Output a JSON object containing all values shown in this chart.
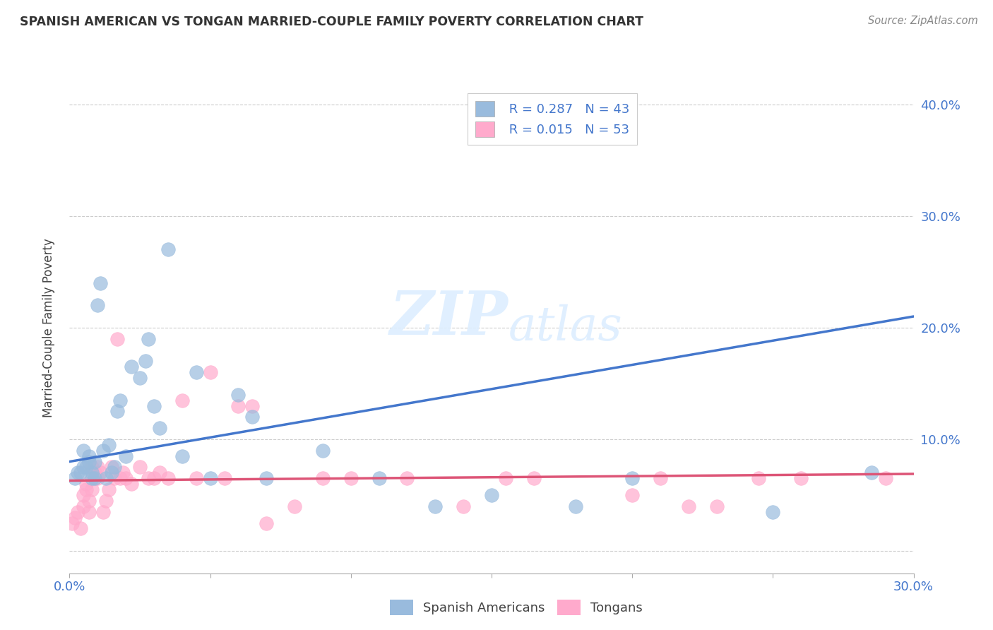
{
  "title": "SPANISH AMERICAN VS TONGAN MARRIED-COUPLE FAMILY POVERTY CORRELATION CHART",
  "source": "Source: ZipAtlas.com",
  "ylabel": "Married-Couple Family Poverty",
  "xlim": [
    0.0,
    0.3
  ],
  "ylim": [
    -0.02,
    0.42
  ],
  "watermark_zip": "ZIP",
  "watermark_atlas": "atlas",
  "legend_labels": [
    "Spanish Americans",
    "Tongans"
  ],
  "legend_R": [
    "R = 0.287",
    "R = 0.015"
  ],
  "legend_N": [
    "N = 43",
    "N = 53"
  ],
  "blue_color": "#99BBDD",
  "pink_color": "#FFAACC",
  "blue_line_color": "#4477CC",
  "pink_line_color": "#DD5577",
  "blue_scatter_x": [
    0.002,
    0.003,
    0.004,
    0.005,
    0.005,
    0.006,
    0.007,
    0.007,
    0.008,
    0.008,
    0.009,
    0.009,
    0.01,
    0.011,
    0.012,
    0.013,
    0.014,
    0.015,
    0.016,
    0.017,
    0.018,
    0.02,
    0.022,
    0.025,
    0.027,
    0.028,
    0.03,
    0.032,
    0.035,
    0.04,
    0.045,
    0.05,
    0.06,
    0.065,
    0.07,
    0.09,
    0.11,
    0.13,
    0.15,
    0.18,
    0.2,
    0.25,
    0.285
  ],
  "blue_scatter_y": [
    0.065,
    0.07,
    0.07,
    0.075,
    0.09,
    0.075,
    0.08,
    0.085,
    0.065,
    0.07,
    0.08,
    0.065,
    0.22,
    0.24,
    0.09,
    0.065,
    0.095,
    0.07,
    0.075,
    0.125,
    0.135,
    0.085,
    0.165,
    0.155,
    0.17,
    0.19,
    0.13,
    0.11,
    0.27,
    0.085,
    0.16,
    0.065,
    0.14,
    0.12,
    0.065,
    0.09,
    0.065,
    0.04,
    0.05,
    0.04,
    0.065,
    0.035,
    0.07
  ],
  "pink_scatter_x": [
    0.001,
    0.002,
    0.003,
    0.004,
    0.005,
    0.005,
    0.006,
    0.006,
    0.007,
    0.007,
    0.008,
    0.008,
    0.009,
    0.009,
    0.01,
    0.01,
    0.011,
    0.012,
    0.013,
    0.014,
    0.015,
    0.016,
    0.017,
    0.018,
    0.019,
    0.02,
    0.022,
    0.025,
    0.028,
    0.03,
    0.032,
    0.035,
    0.04,
    0.045,
    0.05,
    0.055,
    0.06,
    0.065,
    0.07,
    0.08,
    0.09,
    0.1,
    0.12,
    0.14,
    0.155,
    0.165,
    0.2,
    0.21,
    0.22,
    0.23,
    0.245,
    0.26,
    0.29
  ],
  "pink_scatter_y": [
    0.025,
    0.03,
    0.035,
    0.02,
    0.04,
    0.05,
    0.055,
    0.06,
    0.035,
    0.045,
    0.055,
    0.075,
    0.07,
    0.065,
    0.075,
    0.065,
    0.07,
    0.035,
    0.045,
    0.055,
    0.075,
    0.065,
    0.19,
    0.065,
    0.07,
    0.065,
    0.06,
    0.075,
    0.065,
    0.065,
    0.07,
    0.065,
    0.135,
    0.065,
    0.16,
    0.065,
    0.13,
    0.13,
    0.025,
    0.04,
    0.065,
    0.065,
    0.065,
    0.04,
    0.065,
    0.065,
    0.05,
    0.065,
    0.04,
    0.04,
    0.065,
    0.065,
    0.065
  ],
  "blue_trend_x": [
    0.0,
    0.3
  ],
  "blue_trend_y": [
    0.08,
    0.21
  ],
  "pink_trend_x": [
    0.0,
    0.3
  ],
  "pink_trend_y": [
    0.063,
    0.069
  ],
  "grid_color": "#CCCCCC",
  "background_color": "#FFFFFF"
}
